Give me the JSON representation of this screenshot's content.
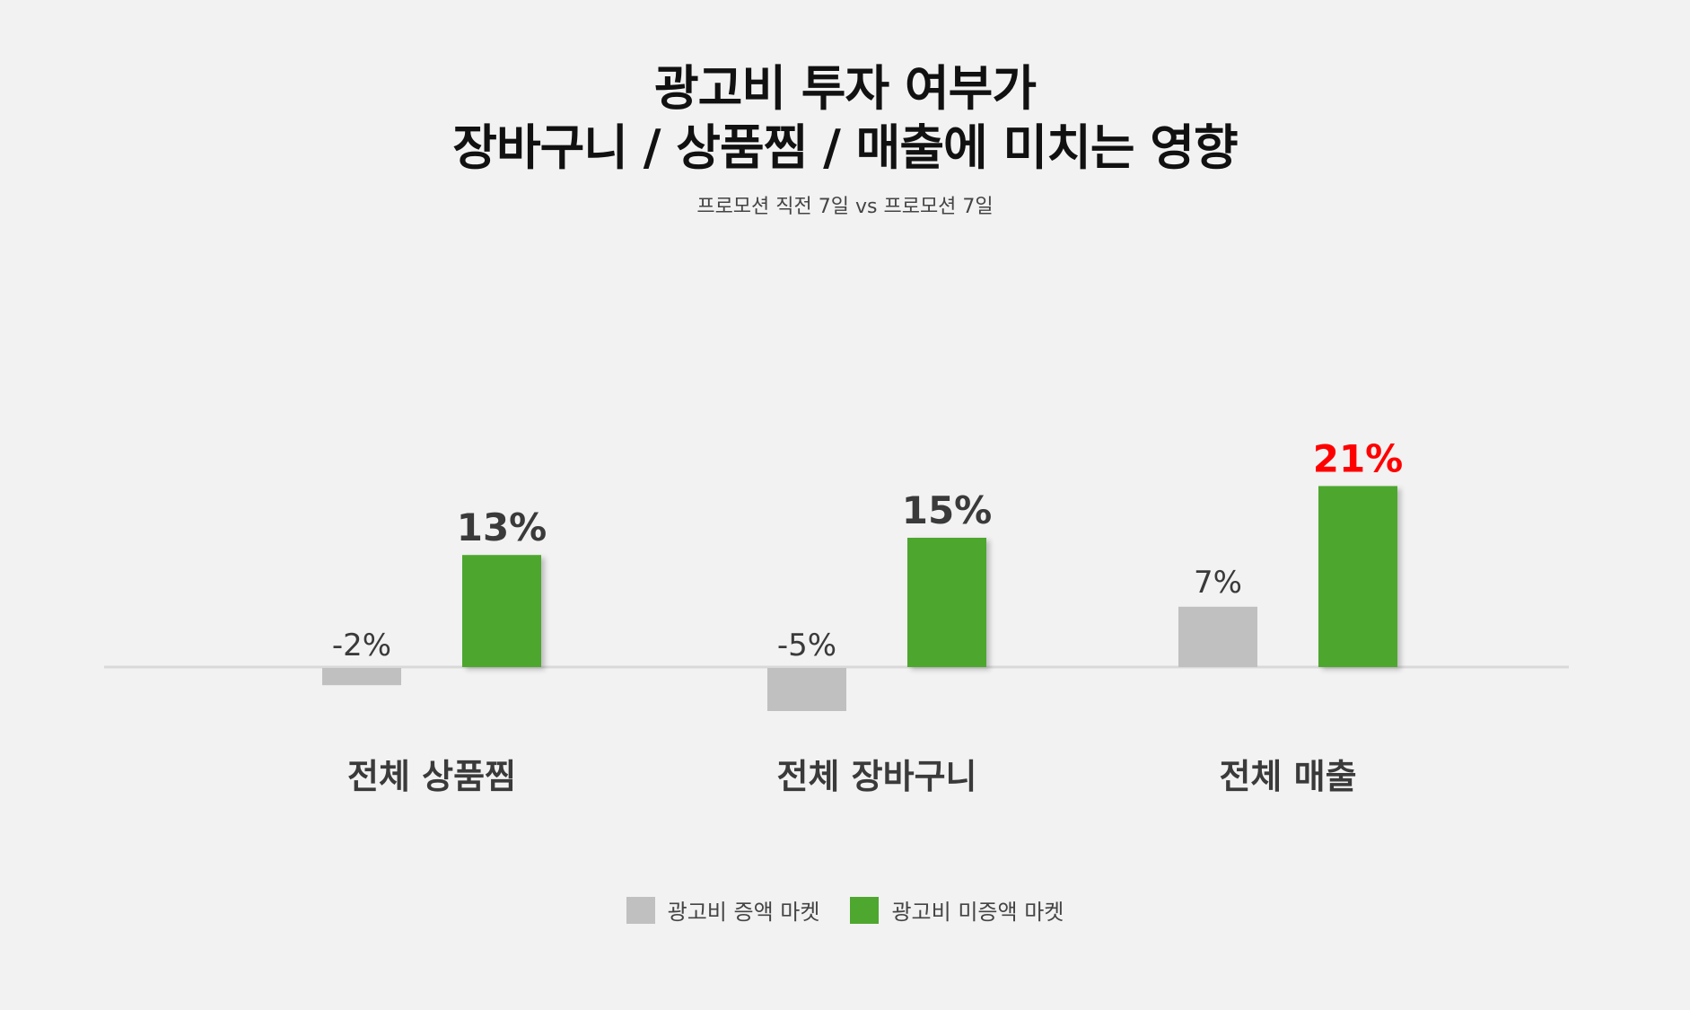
{
  "title": {
    "line1": "광고비 투자 여부가",
    "line2": "장바구니 / 상품찜 / 매출에 미치는 영향"
  },
  "subtitle": "프로모션 직전 7일 vs 프로모션 7일",
  "colors": {
    "background": "#f2f2f2",
    "series_increase": "#c0c0c0",
    "series_no_increase": "#4ea72e",
    "highlight_label": "#ff0000",
    "label_dark": "#3a3a3a",
    "baseline": "#d9d9d9"
  },
  "legend": [
    {
      "label": "광고비 증액 마켓",
      "color": "#c0c0c0"
    },
    {
      "label": "광고비 미증액 마켓",
      "color": "#4ea72e"
    }
  ],
  "chart_data": {
    "type": "bar",
    "categories": [
      "전체 상품찜",
      "전체 장바구니",
      "전체 매출"
    ],
    "series": [
      {
        "name": "광고비 증액 마켓",
        "values": [
          -2,
          -5,
          7
        ],
        "labels": [
          "-2%",
          "-5%",
          "7%"
        ]
      },
      {
        "name": "광고비 미증액 마켓",
        "values": [
          13,
          15,
          21
        ],
        "labels": [
          "13%",
          "15%",
          "21%"
        ]
      }
    ],
    "highlight": {
      "series": 1,
      "category": 2
    },
    "ylim": [
      -6,
      23
    ],
    "grid": false,
    "legend_position": "bottom"
  }
}
